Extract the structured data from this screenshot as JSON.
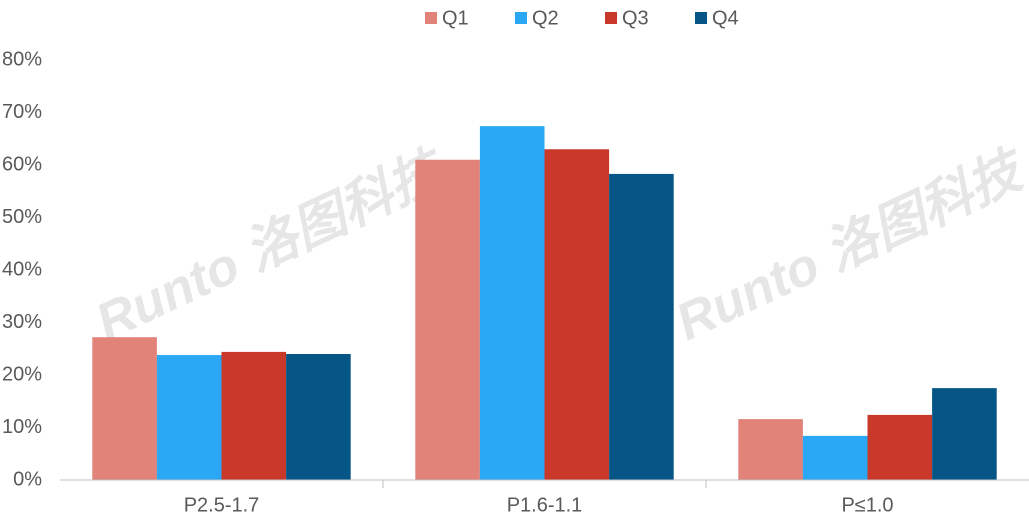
{
  "chart_data": {
    "type": "bar",
    "categories": [
      "P2.5-1.7",
      "P1.6-1.1",
      "P≤1.0"
    ],
    "series": [
      {
        "name": "Q1",
        "color": "#e2837a",
        "values": [
          27.2,
          61.0,
          11.6
        ]
      },
      {
        "name": "Q2",
        "color": "#2aa8f5",
        "values": [
          23.8,
          67.4,
          8.4
        ]
      },
      {
        "name": "Q3",
        "color": "#c8392a",
        "values": [
          24.4,
          63.0,
          12.4
        ]
      },
      {
        "name": "Q4",
        "color": "#055586",
        "values": [
          24.0,
          58.3,
          17.5
        ]
      }
    ],
    "ylim": [
      0,
      80
    ],
    "yticks": [
      {
        "value": 0,
        "label": "0%"
      },
      {
        "value": 10,
        "label": "10%"
      },
      {
        "value": 20,
        "label": "20%"
      },
      {
        "value": 30,
        "label": "30%"
      },
      {
        "value": 40,
        "label": "40%"
      },
      {
        "value": 50,
        "label": "50%"
      },
      {
        "value": 60,
        "label": "60%"
      },
      {
        "value": 70,
        "label": "70%"
      },
      {
        "value": 80,
        "label": "80%"
      }
    ],
    "grid": false,
    "legend": "top",
    "watermark": "Runto 洛图科技"
  }
}
